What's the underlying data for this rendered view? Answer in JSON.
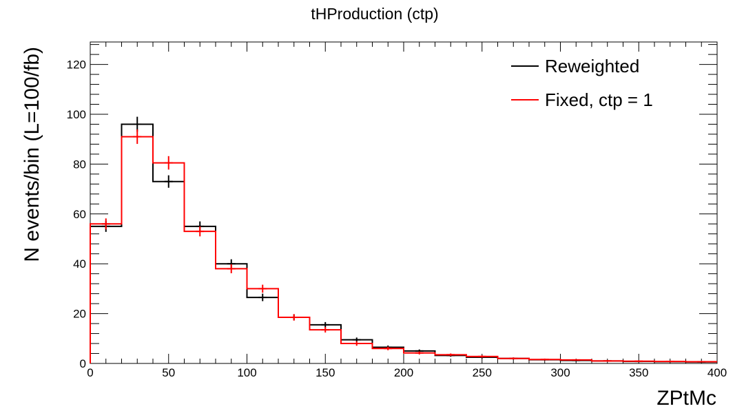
{
  "chart_data": {
    "type": "histogram",
    "title": "tHProduction (ctp)",
    "xlabel": "ZPtMc",
    "ylabel": "N events/bin (L=100/fb)",
    "xlim": [
      0,
      400
    ],
    "ylim": [
      0,
      129
    ],
    "xticks": [
      0,
      50,
      100,
      150,
      200,
      250,
      300,
      350,
      400
    ],
    "yticks": [
      0,
      20,
      40,
      60,
      80,
      100,
      120
    ],
    "bin_edges": [
      0,
      20,
      40,
      60,
      80,
      100,
      120,
      140,
      160,
      180,
      200,
      220,
      240,
      260,
      280,
      300,
      320,
      340,
      360,
      380,
      400
    ],
    "series": [
      {
        "name": "Reweighted",
        "color": "#000000",
        "values": [
          55,
          96,
          73,
          55,
          40,
          26.5,
          18.5,
          15.5,
          9.5,
          6.5,
          5,
          3.2,
          2.5,
          2,
          1.5,
          1.2,
          1,
          0.8,
          0.7,
          0.6
        ],
        "errors": [
          2.2,
          3,
          2.5,
          2,
          1.8,
          1.5,
          1.2,
          1.1,
          0.9,
          0.7,
          0.6,
          0.5,
          0.45,
          0.4,
          0.35,
          0.3,
          0.3,
          0.25,
          0.25,
          0.2
        ]
      },
      {
        "name": "Fixed, ctp = 1",
        "color": "#ff0000",
        "values": [
          56,
          91,
          80.5,
          53,
          38,
          30,
          18.5,
          13.5,
          8,
          6,
          4.2,
          3.5,
          2.8,
          2,
          1.6,
          1.4,
          1,
          0.9,
          0.8,
          0.7
        ],
        "errors": [
          2.2,
          2.9,
          2.7,
          2,
          1.8,
          1.6,
          1.3,
          1.1,
          0.9,
          0.7,
          0.6,
          0.5,
          0.45,
          0.4,
          0.35,
          0.3,
          0.3,
          0.25,
          0.25,
          0.2
        ]
      }
    ]
  }
}
